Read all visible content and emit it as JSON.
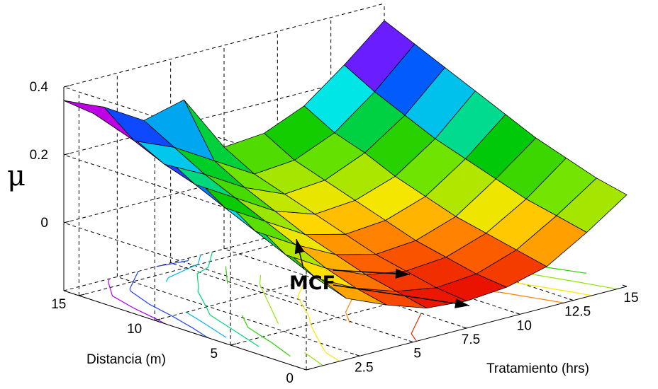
{
  "chart_data": {
    "type": "surface3d",
    "title": "",
    "xlabel": "Tratamiento (hrs)",
    "ylabel": "Distancia (m)",
    "zlabel": "μ",
    "x_ticks": [
      "2.5",
      "5",
      "7.5",
      "10",
      "12.5",
      "15"
    ],
    "y_ticks": [
      "0",
      "5",
      "10",
      "15"
    ],
    "z_ticks": [
      "0",
      "0.2",
      "0.4"
    ],
    "x_range": [
      0,
      15
    ],
    "y_range": [
      0,
      16
    ],
    "z_range": [
      -0.2,
      0.4
    ],
    "x": [
      0,
      1.875,
      3.75,
      5.625,
      7.5,
      9.375,
      11.25,
      13.125,
      15
    ],
    "y": [
      0,
      2,
      4,
      6,
      8,
      10,
      12,
      14,
      16
    ],
    "mu": [
      [
        0.1,
        -0.02,
        -0.07,
        -0.11,
        -0.12,
        -0.11,
        -0.08,
        -0.01,
        0.07
      ],
      [
        0.15,
        0.01,
        -0.05,
        -0.09,
        -0.11,
        -0.1,
        -0.06,
        0.01,
        0.09
      ],
      [
        0.2,
        0.05,
        -0.02,
        -0.07,
        -0.09,
        -0.08,
        -0.04,
        0.03,
        0.12
      ],
      [
        0.24,
        0.09,
        0.02,
        -0.04,
        -0.07,
        -0.06,
        -0.02,
        0.06,
        0.15
      ],
      [
        0.28,
        0.13,
        0.06,
        -0.01,
        -0.04,
        -0.03,
        0.01,
        0.09,
        0.19
      ],
      [
        0.31,
        0.17,
        0.1,
        0.03,
        -0.01,
        0.0,
        0.04,
        0.12,
        0.23
      ],
      [
        0.33,
        0.2,
        0.14,
        0.07,
        0.02,
        0.03,
        0.08,
        0.16,
        0.27
      ],
      [
        0.35,
        0.24,
        0.19,
        0.12,
        0.05,
        0.06,
        0.11,
        0.2,
        0.31
      ],
      [
        0.36,
        0.31,
        0.24,
        0.27,
        0.1,
        0.11,
        0.16,
        0.25,
        0.35
      ]
    ],
    "contour_levels": [
      -0.1,
      -0.05,
      0,
      0.05,
      0.1,
      0.15,
      0.2,
      0.25,
      0.3,
      0.35
    ],
    "colormap": "hsv",
    "grid": true,
    "annotation": {
      "text": "MCF",
      "arrows": 3
    }
  }
}
